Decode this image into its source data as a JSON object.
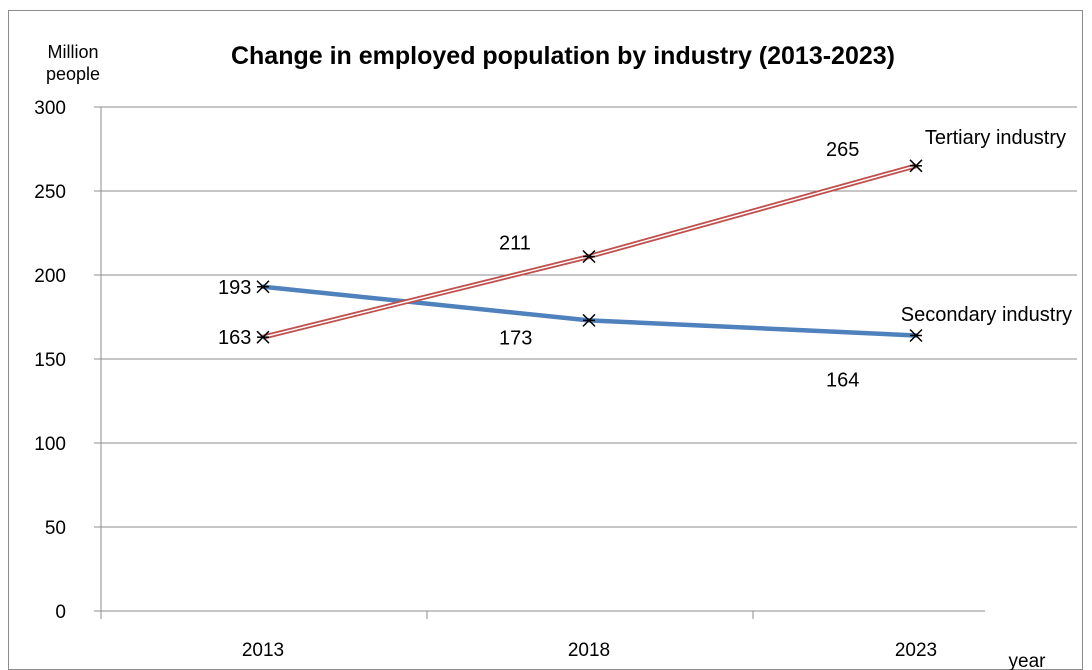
{
  "chart_data": {
    "type": "line",
    "title": "Change in employed population by industry (2013-2023)",
    "ylabel_line1": "Million",
    "ylabel_line2": "people",
    "xlabel": "year",
    "categories": [
      "2013",
      "2018",
      "2023"
    ],
    "ylim": [
      0,
      300
    ],
    "yticks": [
      0,
      50,
      100,
      150,
      200,
      250,
      300
    ],
    "grid": true,
    "legend": "none",
    "series": [
      {
        "name": "Secondary industry",
        "values": [
          193,
          173,
          164
        ],
        "color": "#4f81bd",
        "style": "solid"
      },
      {
        "name": "Tertiary industry",
        "values": [
          163,
          211,
          265
        ],
        "color": "#c0504d",
        "style": "double"
      }
    ]
  }
}
